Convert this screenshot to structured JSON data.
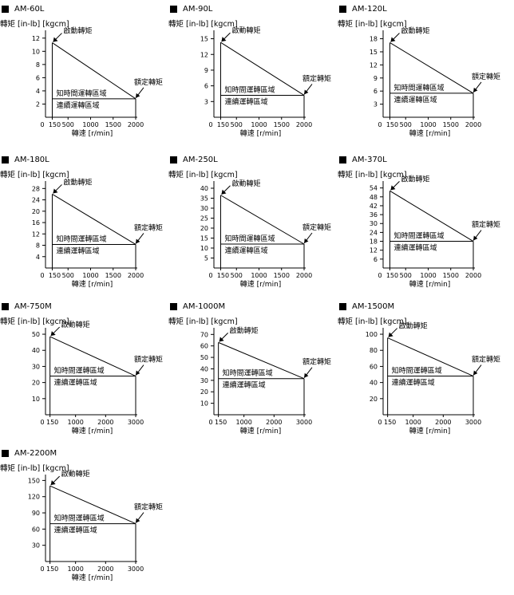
{
  "chart_data": [
    {
      "type": "line",
      "title": "AM-60L",
      "ylabel": "轉矩 [in-lb] [kgcm]",
      "xlabel": "轉速 [r/min]",
      "x_ticks": [
        0,
        150,
        500,
        1000,
        1500,
        2000
      ],
      "y_ticks": [
        2,
        4,
        6,
        8,
        10,
        12
      ],
      "xlim": [
        0,
        2000
      ],
      "ylim": [
        0,
        12.7
      ],
      "start": {
        "x": 150,
        "y": 11.3,
        "label": "啟動轉矩"
      },
      "rated": {
        "x": 2000,
        "y": 2.8,
        "label": "額定轉矩"
      },
      "regions": [
        {
          "label": "知時間運轉區域"
        },
        {
          "label": "連續運轉區域"
        }
      ]
    },
    {
      "type": "line",
      "title": "AM-90L",
      "ylabel": "轉矩 [in-lb] [kgcm]",
      "xlabel": "轉速 [r/min]",
      "x_ticks": [
        0,
        150,
        500,
        1000,
        1500,
        2000
      ],
      "y_ticks": [
        3,
        6,
        9,
        12,
        15
      ],
      "xlim": [
        0,
        2000
      ],
      "ylim": [
        0,
        16
      ],
      "start": {
        "x": 150,
        "y": 14.3,
        "label": "啟動轉矩"
      },
      "rated": {
        "x": 2000,
        "y": 4.2,
        "label": "額定轉矩"
      },
      "regions": [
        {
          "label": "知時間運轉區域"
        },
        {
          "label": "連續運轉區域"
        }
      ]
    },
    {
      "type": "line",
      "title": "AM-120L",
      "ylabel": "轉矩 [in-lb] [kgcm]",
      "xlabel": "轉速 [r/min]",
      "x_ticks": [
        0,
        150,
        500,
        1000,
        1500,
        2000
      ],
      "y_ticks": [
        3,
        6,
        9,
        12,
        15,
        18
      ],
      "xlim": [
        0,
        2000
      ],
      "ylim": [
        0,
        19.2
      ],
      "start": {
        "x": 150,
        "y": 17.1,
        "label": "啟動轉矩"
      },
      "rated": {
        "x": 2000,
        "y": 5.5,
        "label": "額定轉矩"
      },
      "regions": [
        {
          "label": "知時間運轉區域"
        },
        {
          "label": "連續運轉區域"
        }
      ]
    },
    {
      "type": "line",
      "title": "AM-180L",
      "ylabel": "轉矩 [in-lb] [kgcm]",
      "xlabel": "轉速 [r/min]",
      "x_ticks": [
        0,
        150,
        500,
        1000,
        1500,
        2000
      ],
      "y_ticks": [
        4,
        8,
        12,
        16,
        20,
        24,
        28
      ],
      "xlim": [
        0,
        2000
      ],
      "ylim": [
        0,
        29.5
      ],
      "start": {
        "x": 150,
        "y": 26,
        "label": "啟動轉矩"
      },
      "rated": {
        "x": 2000,
        "y": 8.3,
        "label": "額定轉矩"
      },
      "regions": [
        {
          "label": "知時間運轉區域"
        },
        {
          "label": "連續運轉區域"
        }
      ]
    },
    {
      "type": "line",
      "title": "AM-250L",
      "ylabel": "轉矩 [in-lb] [kgcm]",
      "xlabel": "轉速 [r/min]",
      "x_ticks": [
        0,
        150,
        500,
        1000,
        1500,
        2000
      ],
      "y_ticks": [
        5,
        10,
        15,
        20,
        25,
        30,
        35,
        40
      ],
      "xlim": [
        0,
        2000
      ],
      "ylim": [
        0,
        42
      ],
      "start": {
        "x": 150,
        "y": 36.5,
        "label": "啟動轉矩"
      },
      "rated": {
        "x": 2000,
        "y": 12,
        "label": "額定轉矩"
      },
      "regions": [
        {
          "label": "知時間運轉區域"
        },
        {
          "label": "連續運轉區域"
        }
      ]
    },
    {
      "type": "line",
      "title": "AM-370L",
      "ylabel": "轉矩 [in-lb] [kgcm]",
      "xlabel": "轉速 [r/min]",
      "x_ticks": [
        0,
        150,
        500,
        1000,
        1500,
        2000
      ],
      "y_ticks": [
        6,
        12,
        18,
        24,
        30,
        36,
        42,
        48,
        54
      ],
      "xlim": [
        0,
        2000
      ],
      "ylim": [
        0,
        56.5
      ],
      "start": {
        "x": 150,
        "y": 52,
        "label": "啟動轉矩"
      },
      "rated": {
        "x": 2000,
        "y": 18,
        "label": "額定轉矩"
      },
      "regions": [
        {
          "label": "知時間運轉區域"
        },
        {
          "label": "連續運轉區域"
        }
      ]
    },
    {
      "type": "line",
      "title": "AM-750M",
      "ylabel": "轉矩 [in-lb] [kgcm]",
      "xlabel": "轉速 [r/min]",
      "x_ticks": [
        0,
        150,
        1000,
        2000,
        3000
      ],
      "y_ticks": [
        10,
        20,
        30,
        40,
        50
      ],
      "xlim": [
        0,
        3000
      ],
      "ylim": [
        0,
        52
      ],
      "start": {
        "x": 150,
        "y": 48.5,
        "label": "啟動轉矩"
      },
      "rated": {
        "x": 3000,
        "y": 24,
        "label": "額定轉矩"
      },
      "regions": [
        {
          "label": "知時間運轉區域"
        },
        {
          "label": "連續運轉區域"
        }
      ]
    },
    {
      "type": "line",
      "title": "AM-1000M",
      "ylabel": "轉矩 [in-lb] [kgcm]",
      "xlabel": "轉速 [r/min]",
      "x_ticks": [
        0,
        150,
        1000,
        2000,
        3000
      ],
      "y_ticks": [
        10,
        20,
        30,
        40,
        50,
        60,
        70
      ],
      "xlim": [
        0,
        3000
      ],
      "ylim": [
        0,
        73
      ],
      "start": {
        "x": 150,
        "y": 63,
        "label": "啟動轉矩"
      },
      "rated": {
        "x": 3000,
        "y": 31.5,
        "label": "額定轉矩"
      },
      "regions": [
        {
          "label": "知時間運轉區域"
        },
        {
          "label": "連續運轉區域"
        }
      ]
    },
    {
      "type": "line",
      "title": "AM-1500M",
      "ylabel": "轉矩 [in-lb] [kgcm]",
      "xlabel": "轉速 [r/min]",
      "x_ticks": [
        0,
        150,
        1000,
        2000,
        3000
      ],
      "y_ticks": [
        20,
        40,
        60,
        80,
        100
      ],
      "xlim": [
        0,
        3000
      ],
      "ylim": [
        0,
        104
      ],
      "start": {
        "x": 150,
        "y": 95.5,
        "label": "啟動轉矩"
      },
      "rated": {
        "x": 3000,
        "y": 48,
        "label": "額定轉矩"
      },
      "regions": [
        {
          "label": "知時間運轉區域"
        },
        {
          "label": "連續運轉區域"
        }
      ]
    },
    {
      "type": "line",
      "title": "AM-2200M",
      "ylabel": "轉矩 [in-lb] [kgcm]",
      "xlabel": "轉速 [r/min]",
      "x_ticks": [
        0,
        150,
        1000,
        2000,
        3000
      ],
      "y_ticks": [
        30,
        60,
        90,
        120,
        150
      ],
      "xlim": [
        0,
        3000
      ],
      "ylim": [
        0,
        155
      ],
      "start": {
        "x": 150,
        "y": 140,
        "label": "啟動轉矩"
      },
      "rated": {
        "x": 3000,
        "y": 70,
        "label": "額定轉矩"
      },
      "regions": [
        {
          "label": "知時間運轉區域"
        },
        {
          "label": "連續運轉區域"
        }
      ]
    }
  ]
}
